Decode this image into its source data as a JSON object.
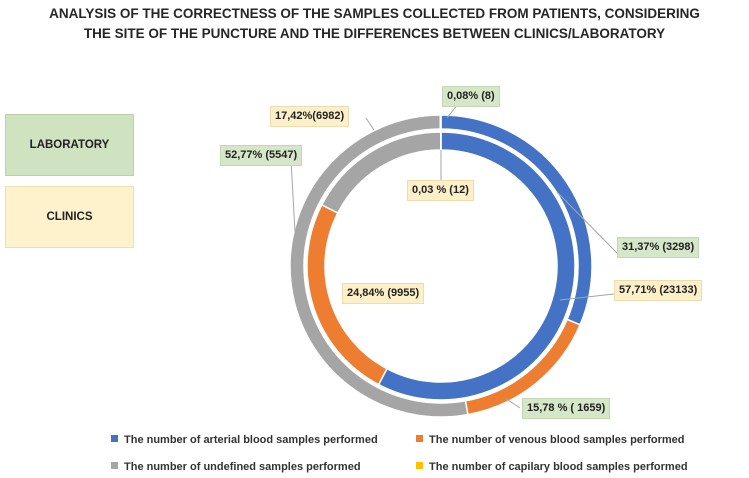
{
  "title": {
    "line1": "ANALYSIS OF THE CORRECTNESS OF THE SAMPLES COLLECTED FROM PATIENTS, CONSIDERING",
    "line2": "THE SITE OF THE PUNCTURE AND THE DIFFERENCES BETWEEN CLINICS/LABORATORY"
  },
  "side_legend": {
    "laboratory": "LABORATORY",
    "clinics": "CLINICS"
  },
  "colors": {
    "arterial": "#4472c4",
    "venous": "#ed7d31",
    "undefined": "#a5a5a5",
    "capillary": "#ffc000",
    "lab_box": "#cfe3c1",
    "clinics_box": "#fdf2cc"
  },
  "chart_data": {
    "type": "doughnut",
    "title": "ANALYSIS OF THE CORRECTNESS OF THE SAMPLES COLLECTED FROM PATIENTS, CONSIDERING THE SITE OF THE PUNCTURE AND THE DIFFERENCES BETWEEN CLINICS/LABORATORY",
    "categories": [
      "The number of arterial blood samples performed",
      "The number of venous blood samples performed",
      "The number of undefined samples performed",
      "The number of capilary blood samples performed"
    ],
    "series": [
      {
        "name": "Laboratory",
        "ring": "outer",
        "percent": [
          31.37,
          15.78,
          52.77,
          0.08
        ],
        "counts": [
          3298,
          1659,
          5547,
          8
        ],
        "labels": [
          "31,37% (3298)",
          "15,78 % ( 1659)",
          "52,77% (5547)",
          "0,08% (8)"
        ]
      },
      {
        "name": "Clinics",
        "ring": "inner",
        "percent": [
          57.71,
          24.84,
          17.42,
          0.03
        ],
        "counts": [
          23133,
          9955,
          6982,
          12
        ],
        "labels": [
          "57,71% (23133)",
          "24,84% (9955)",
          "17,42%(6982)",
          "0,03 % (12)"
        ]
      }
    ],
    "legend_position": "bottom"
  },
  "legend": {
    "arterial": "The number of arterial blood samples performed",
    "venous": "The number of venous blood samples performed",
    "undefined": "The number of undefined samples performed",
    "capillary": "The number of capilary blood samples performed"
  }
}
